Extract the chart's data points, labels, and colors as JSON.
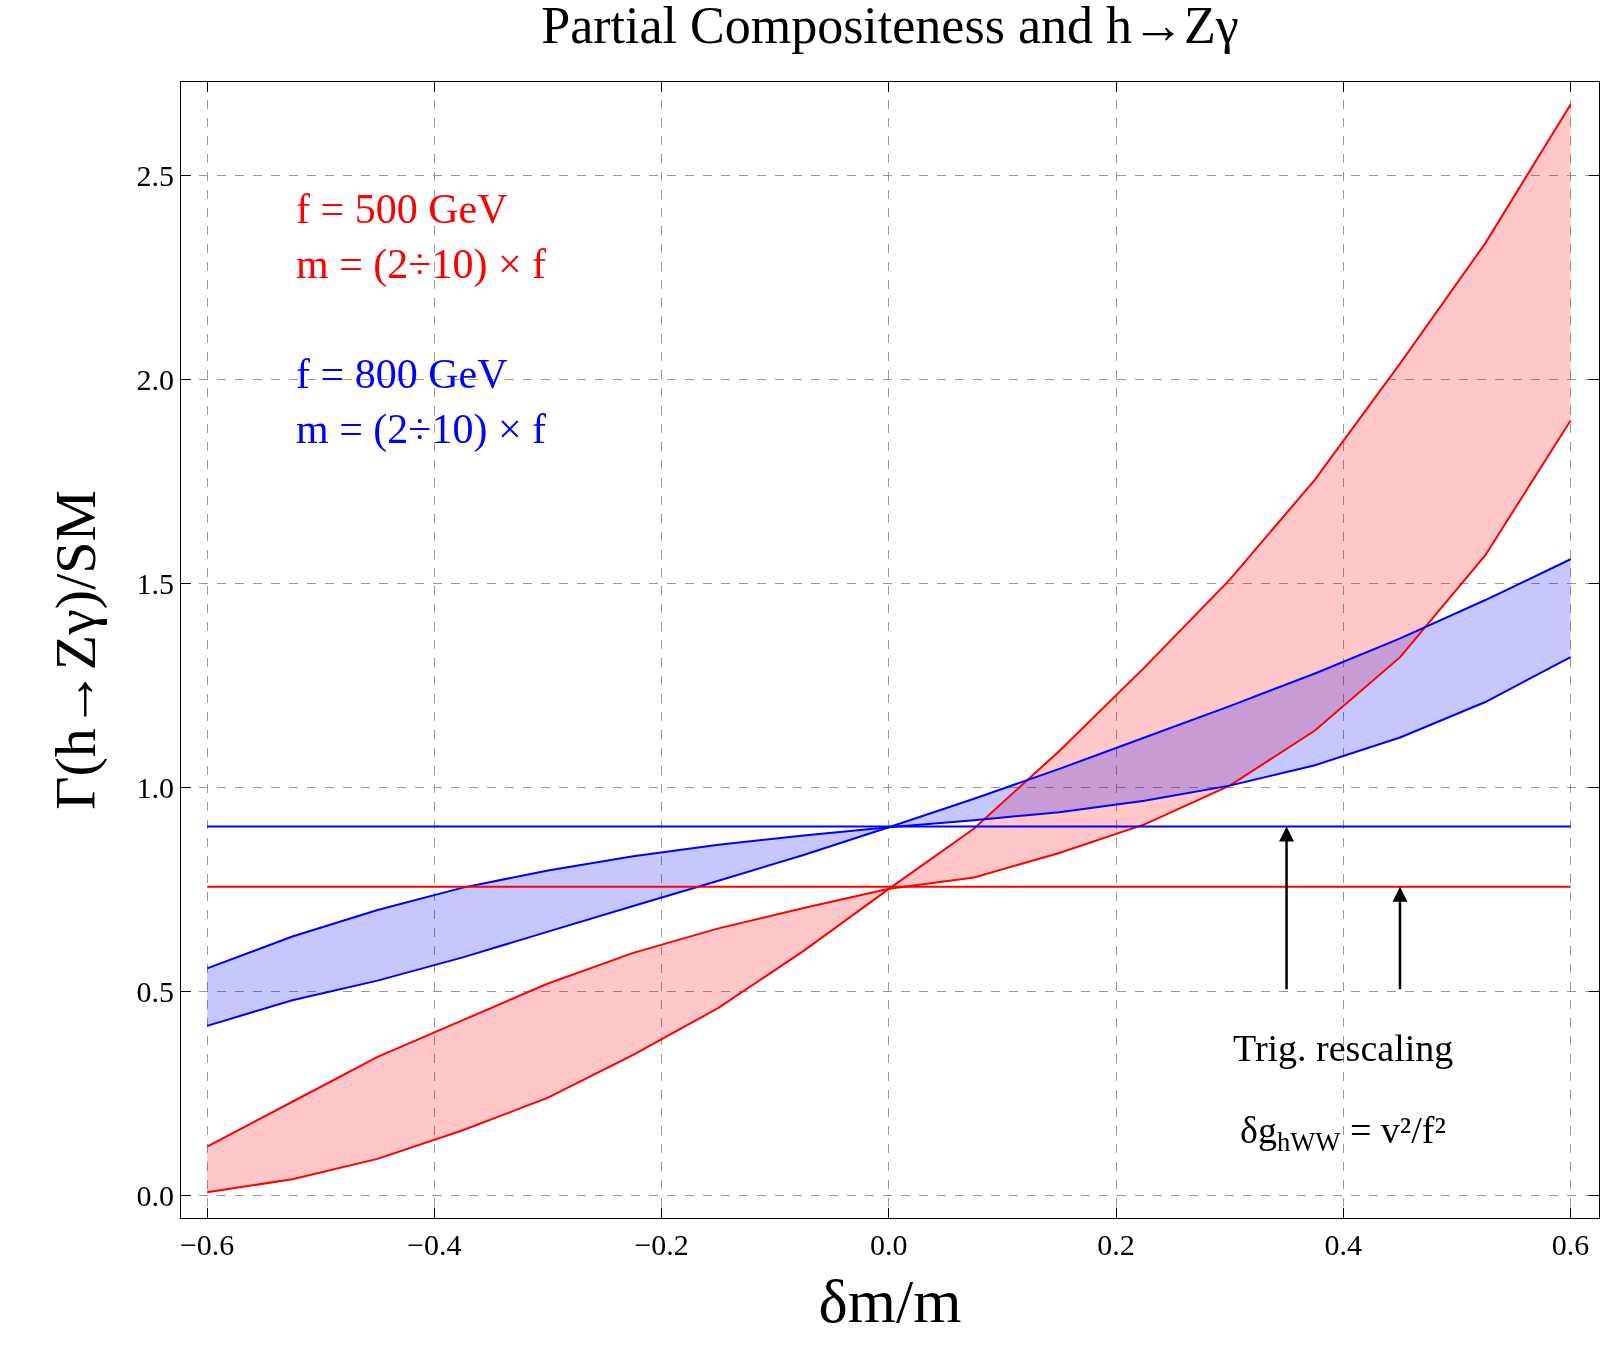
{
  "chart_data": {
    "type": "line",
    "title": "Partial Compositeness and h→Zγ",
    "xlabel": "δm/m",
    "ylabel": "Γ(h→Zγ)/SM",
    "x": [
      -0.6,
      -0.525,
      -0.45,
      -0.375,
      -0.3,
      -0.225,
      -0.15,
      -0.075,
      0,
      0.075,
      0.15,
      0.225,
      0.3,
      0.375,
      0.45,
      0.525,
      0.6
    ],
    "series": [
      {
        "name": "f = 500 GeV\nm = (2÷10) × f",
        "color": "#ff0000",
        "values": [
          0.12,
          0.23,
          0.34,
          0.43,
          0.52,
          0.595,
          0.655,
          0.705,
          0.752,
          0.78,
          0.84,
          0.91,
          1.005,
          1.14,
          1.32,
          1.57,
          1.9
        ]
      },
      {
        "color": "#ff0000",
        "values": [
          0.008,
          0.04,
          0.09,
          0.16,
          0.24,
          0.345,
          0.46,
          0.6,
          0.752,
          0.9,
          1.09,
          1.295,
          1.51,
          1.755,
          2.04,
          2.335,
          2.675
        ],
        "lower": [
          0.12,
          0.23,
          0.34,
          0.43,
          0.52,
          0.595,
          0.655,
          0.705,
          0.752,
          0.78,
          0.84,
          0.91,
          1.005,
          1.14,
          1.32,
          1.57,
          1.9
        ],
        "upper": [
          0.008,
          0.04,
          0.09,
          0.16,
          0.24,
          0.345,
          0.46,
          0.6,
          0.752,
          0.9,
          1.09,
          1.295,
          1.51,
          1.755,
          2.04,
          2.335,
          2.675
        ]
      },
      {
        "name": "f = 800 GeV\nm = (2÷10) × f",
        "color": "#0000ff",
        "values": [
          0.557,
          0.635,
          0.7,
          0.755,
          0.797,
          0.832,
          0.86,
          0.883,
          0.903,
          0.92,
          0.94,
          0.968,
          1.005,
          1.055,
          1.123,
          1.21,
          1.32
        ]
      },
      {
        "color": "#0000ff",
        "values": [
          0.416,
          0.479,
          0.527,
          0.584,
          0.647,
          0.71,
          0.772,
          0.835,
          0.903,
          0.973,
          1.046,
          1.123,
          1.2,
          1.28,
          1.366,
          1.46,
          1.56
        ],
        "lower": [
          0.557,
          0.635,
          0.7,
          0.755,
          0.797,
          0.832,
          0.86,
          0.883,
          0.903,
          0.92,
          0.94,
          0.968,
          1.005,
          1.055,
          1.123,
          1.21,
          1.32
        ],
        "upper": [
          0.416,
          0.479,
          0.527,
          0.584,
          0.647,
          0.71,
          0.772,
          0.835,
          0.903,
          0.973,
          1.046,
          1.123,
          1.2,
          1.28,
          1.366,
          1.46,
          1.56
        ]
      }
    ],
    "ref_lines": [
      {
        "axis": "y",
        "value": 0.905,
        "color": "#0000ff"
      },
      {
        "axis": "y",
        "value": 0.757,
        "color": "#ff0000"
      }
    ],
    "annotations": [
      {
        "text": "Trig. rescaling",
        "x": 0.35,
        "y": 0.905
      },
      "δg$_{hWW}$ = v²/f²"
    ],
    "xlim": [
      -0.623,
      0.625
    ],
    "ylim": [
      -0.055,
      2.73
    ],
    "xticks": [
      {
        "value": -0.6,
        "label": "−0.6"
      },
      {
        "value": -0.4,
        "label": "−0.4"
      },
      {
        "value": -0.2,
        "label": "−0.2"
      },
      {
        "value": 0,
        "label": "0.0"
      },
      0.2,
      0.4,
      0.6
    ],
    "yticks": [
      {
        "value": 0,
        "label": "0.0"
      },
      0.5,
      {
        "value": 1,
        "label": "1.0"
      },
      1.5,
      {
        "value": 2,
        "label": "2.0"
      },
      2.5
    ],
    "grid": true,
    "line_style": "solid",
    "marker": "none"
  }
}
